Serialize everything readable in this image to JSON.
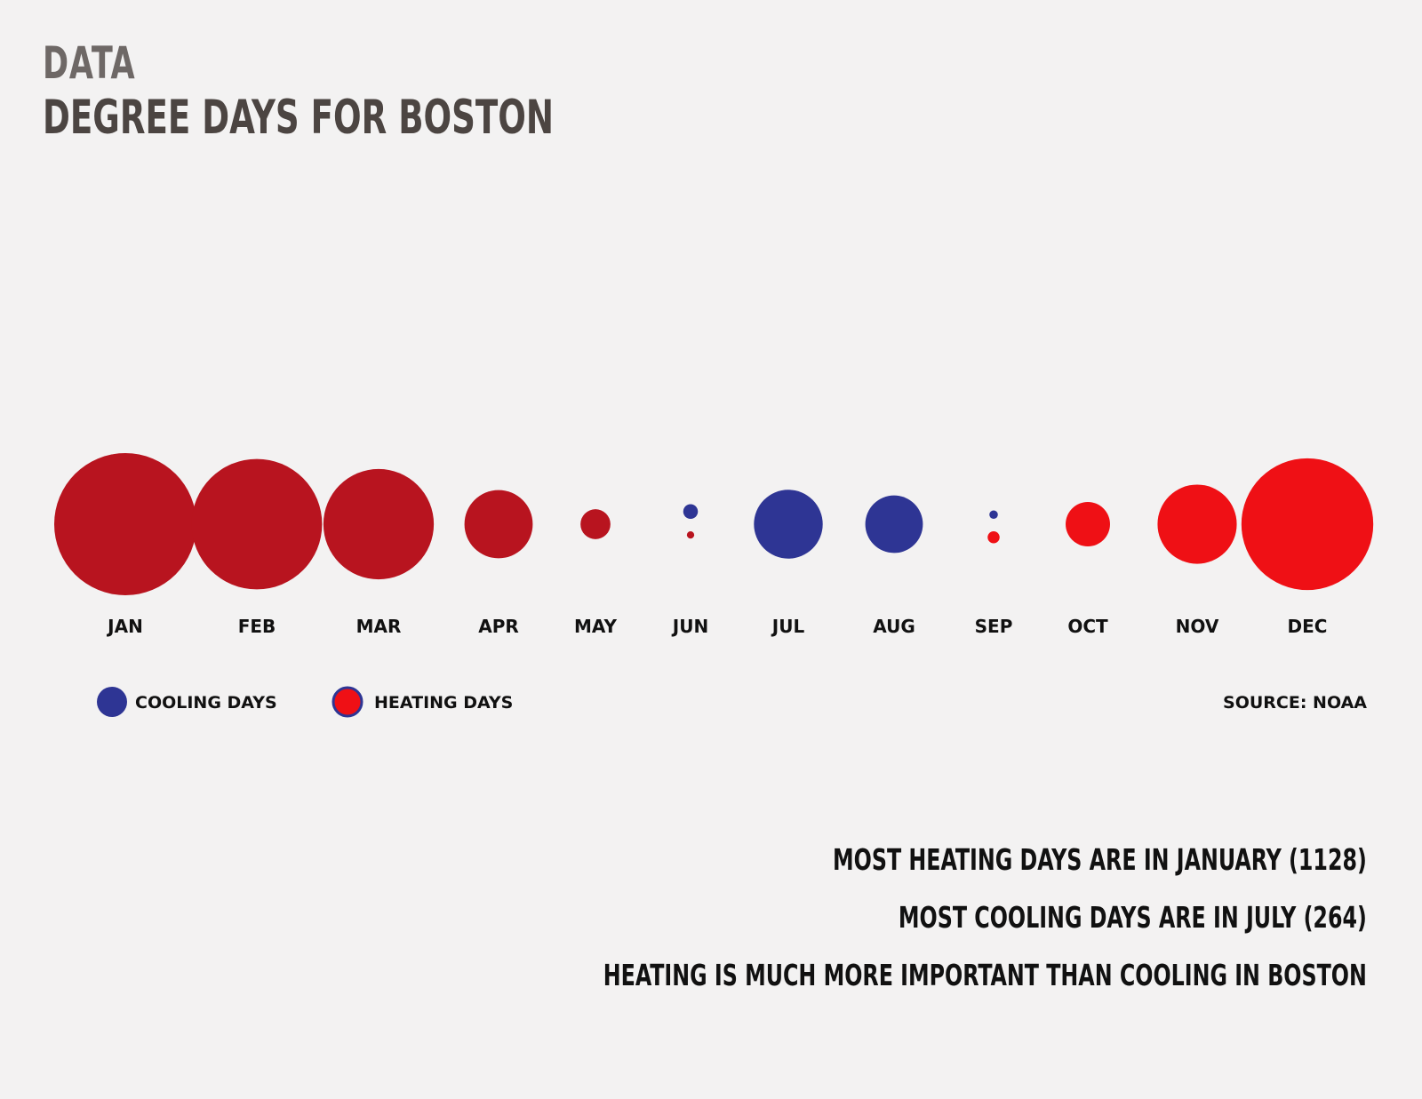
{
  "header": {
    "kicker": "DATA",
    "title": "DEGREE DAYS FOR BOSTON"
  },
  "colors": {
    "cooling": "#2e3594",
    "heating_early": "#b8141f",
    "heating_late": "#ef1015"
  },
  "chart_data": {
    "type": "bubble",
    "categories": [
      "JAN",
      "FEB",
      "MAR",
      "APR",
      "MAY",
      "JUN",
      "JUL",
      "AUG",
      "SEP",
      "OCT",
      "NOV",
      "DEC"
    ],
    "series": [
      {
        "name": "HEATING DAYS",
        "values": [
          1128,
          950,
          680,
          260,
          50,
          3,
          0,
          0,
          8,
          110,
          350,
          970
        ]
      },
      {
        "name": "COOLING DAYS",
        "values": [
          0,
          0,
          0,
          0,
          0,
          12,
          264,
          185,
          4,
          0,
          0,
          0
        ]
      }
    ],
    "legend": "bottom-left",
    "source": "SOURCE: NOAA"
  },
  "takeaways": [
    "MOST HEATING DAYS ARE IN JANUARY (1128)",
    "MOST COOLING DAYS ARE IN JULY (264)",
    "HEATING IS  MUCH MORE IMPORTANT THAN COOLING IN BOSTON"
  ]
}
